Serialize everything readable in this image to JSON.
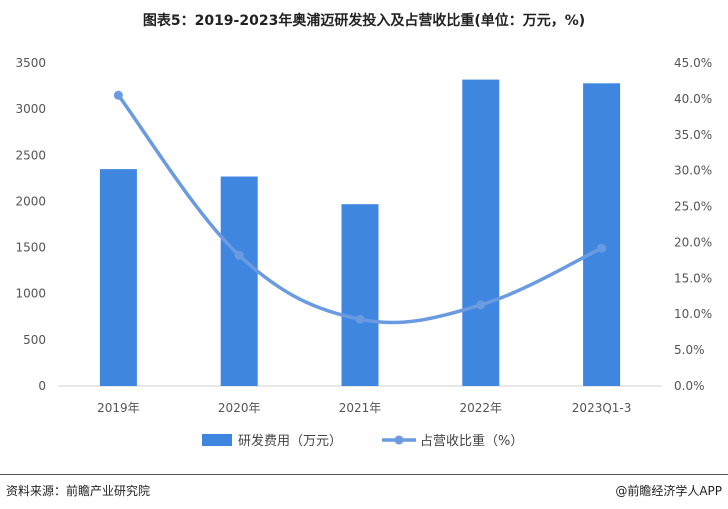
{
  "chart_data": {
    "type": "bar+line",
    "title": "图表5：2019-2023年奥浦迈研发投入及占营收比重(单位：万元，%)",
    "categories": [
      "2019年",
      "2020年",
      "2021年",
      "2022年",
      "2023Q1-3"
    ],
    "series": [
      {
        "name": "研发费用（万元）",
        "type": "bar",
        "axis": "left",
        "color": "#3f86e0",
        "values": [
          2350,
          2270,
          1970,
          3320,
          3280
        ]
      },
      {
        "name": "占营收比重（%）",
        "type": "line",
        "axis": "right",
        "color": "#6a9be0",
        "values": [
          40.5,
          18.2,
          9.3,
          11.3,
          19.2
        ]
      }
    ],
    "y_left": {
      "min": 0,
      "max": 3500,
      "ticks": [
        "0",
        "500",
        "1000",
        "1500",
        "2000",
        "2500",
        "3000",
        "3500"
      ]
    },
    "y_right": {
      "min": 0,
      "max": 45,
      "ticks": [
        "0.0%",
        "5.0%",
        "10.0%",
        "15.0%",
        "20.0%",
        "25.0%",
        "30.0%",
        "35.0%",
        "40.0%",
        "45.0%"
      ]
    },
    "legend_position": "bottom",
    "grid": false
  },
  "footer": {
    "source_left": "资料来源：前瞻产业研究院",
    "source_right": "@前瞻经济学人APP"
  }
}
